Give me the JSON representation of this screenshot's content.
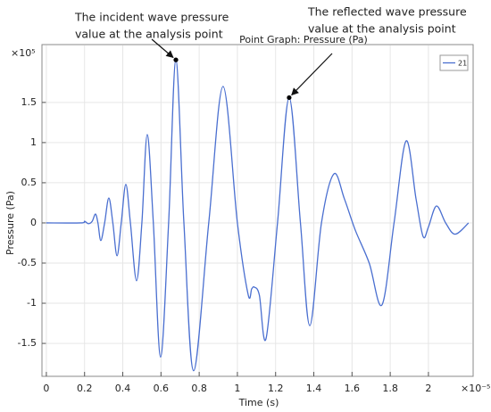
{
  "chart_data": {
    "type": "line",
    "title": "Point Graph: Pressure (Pa)",
    "xlabel": "Time (s)",
    "ylabel": "Pressure (Pa)",
    "x_exponent": "×10⁻⁵",
    "y_exponent": "×10⁵",
    "x": [
      0,
      0.18,
      0.2,
      0.22,
      0.24,
      0.257,
      0.27,
      0.285,
      0.305,
      0.327,
      0.348,
      0.37,
      0.392,
      0.416,
      0.44,
      0.472,
      0.5,
      0.528,
      0.56,
      0.598,
      0.64,
      0.678,
      0.72,
      0.771,
      0.85,
      0.925,
      1.0,
      1.056,
      1.075,
      1.089,
      1.115,
      1.15,
      1.21,
      1.271,
      1.33,
      1.379,
      1.44,
      1.505,
      1.56,
      1.617,
      1.69,
      1.757,
      1.82,
      1.883,
      1.935,
      1.972,
      2.0,
      2.042,
      2.09,
      2.14,
      2.21
    ],
    "series": [
      {
        "name": "21",
        "color": "#4a6fd0",
        "values": [
          0,
          0,
          0.02,
          -0.01,
          0.02,
          0.11,
          0,
          -0.22,
          0,
          0.31,
          0,
          -0.41,
          0,
          0.48,
          0,
          -0.72,
          0,
          1.1,
          0,
          -1.67,
          0,
          2.03,
          0,
          -1.84,
          0,
          1.7,
          0,
          -0.89,
          -0.82,
          -0.8,
          -0.9,
          -1.44,
          0,
          1.56,
          0,
          -1.28,
          0,
          0.61,
          0.3,
          -0.09,
          -0.5,
          -1.02,
          0,
          1.02,
          0.3,
          -0.17,
          -0.05,
          0.21,
          0,
          -0.14,
          0
        ]
      }
    ],
    "xlim": [
      -0.023,
      2.234
    ],
    "ylim": [
      -1.91,
      2.22
    ],
    "xticks": [
      0,
      0.2,
      0.4,
      0.6,
      0.8,
      1,
      1.2,
      1.4,
      1.6,
      1.8,
      2
    ],
    "yticks": [
      -1.5,
      -1,
      -0.5,
      0,
      0.5,
      1,
      1.5
    ],
    "grid": true,
    "legend": "upper right",
    "annotations": [
      {
        "lines": [
          "The incident wave pressure",
          "value at the analysis point"
        ],
        "point": 21
      },
      {
        "lines": [
          "The reflected wave pressure",
          "value at the analysis point"
        ],
        "point": 33
      }
    ]
  }
}
